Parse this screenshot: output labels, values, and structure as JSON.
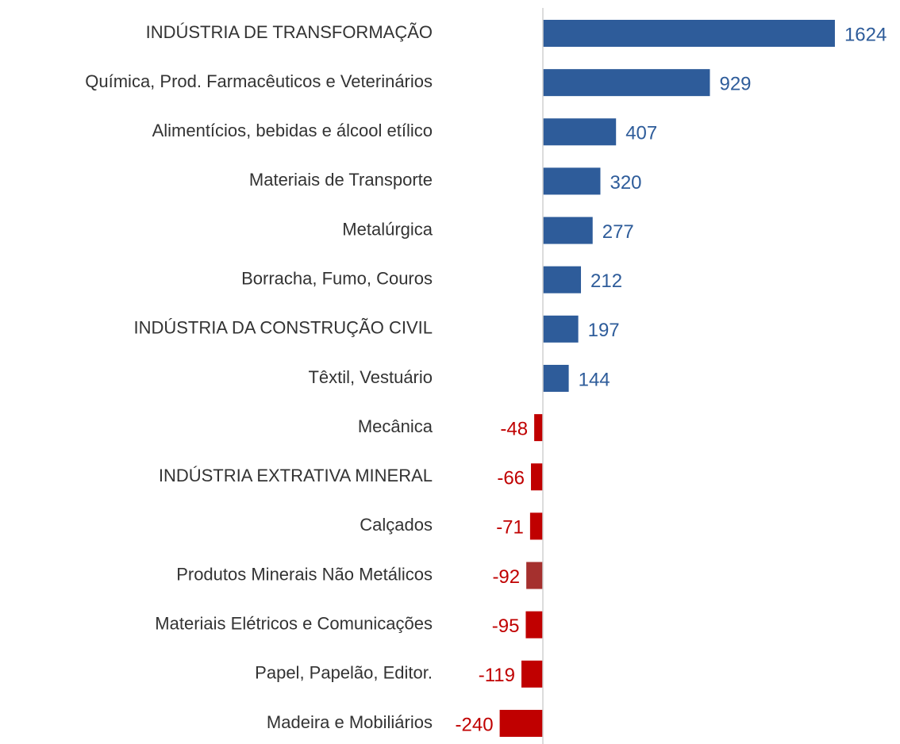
{
  "chart_data": {
    "type": "barh",
    "categories": [
      "INDÚSTRIA DE TRANSFORMAÇÃO",
      "Química, Prod. Farmacêuticos e Veterinários",
      "Alimentícios, bebidas e álcool etílico",
      "Materiais de Transporte",
      "Metalúrgica",
      "Borracha, Fumo, Couros",
      "INDÚSTRIA DA CONSTRUÇÃO CIVIL",
      "Têxtil, Vestuário",
      "Mecânica",
      "INDÚSTRIA EXTRATIVA MINERAL",
      "Calçados",
      "Produtos Minerais Não Metálicos",
      "Materiais Elétricos e Comunicações",
      "Papel, Papelão, Editor.",
      "Madeira e Mobiliários"
    ],
    "values": [
      1624,
      929,
      407,
      320,
      277,
      212,
      197,
      144,
      -48,
      -66,
      -71,
      -92,
      -95,
      -119,
      -240
    ],
    "colors": [
      "#2e5c9a",
      "#2e5c9a",
      "#2e5c9a",
      "#2e5c9a",
      "#2e5c9a",
      "#2e5c9a",
      "#2e5c9a",
      "#2e5c9a",
      "#c00000",
      "#c00000",
      "#c00000",
      "#a5302e",
      "#c00000",
      "#c00000",
      "#c00000"
    ],
    "label_colors": {
      "positive": "#2e5c9a",
      "negative": "#c00000"
    },
    "xlim": [
      -300,
      1900
    ]
  }
}
